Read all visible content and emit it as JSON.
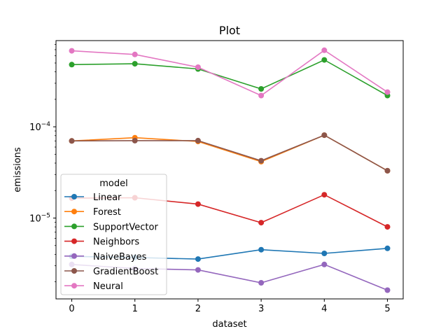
{
  "chart_data": {
    "type": "line",
    "title": "Plot",
    "xlabel": "dataset",
    "ylabel": "emissions",
    "yscale": "log",
    "x": [
      0,
      1,
      2,
      3,
      4,
      5
    ],
    "xlim": [
      -0.25,
      5.25
    ],
    "ylim": [
      1.3e-06,
      0.00088
    ],
    "x_ticks": [
      "0",
      "1",
      "2",
      "3",
      "4",
      "5"
    ],
    "y_major_ticks": [
      {
        "value": 1e-05,
        "base": "10",
        "exp": "−5"
      },
      {
        "value": 0.0001,
        "base": "10",
        "exp": "−4"
      }
    ],
    "grid": false,
    "legend": {
      "title": "model",
      "placement": "lower-left"
    },
    "series": [
      {
        "name": "Linear",
        "color": "#1f77b4",
        "values": [
          3.8e-06,
          3.7e-06,
          3.55e-06,
          4.5e-06,
          4.1e-06,
          4.65e-06
        ]
      },
      {
        "name": "Forest",
        "color": "#ff7f0e",
        "values": [
          7e-05,
          7.6e-05,
          6.9e-05,
          4.15e-05,
          8.1e-05,
          3.3e-05
        ]
      },
      {
        "name": "SupportVector",
        "color": "#2ca02c",
        "values": [
          0.00048,
          0.00049,
          0.00043,
          0.00026,
          0.00054,
          0.00022
        ]
      },
      {
        "name": "Neighbors",
        "color": "#d62728",
        "values": [
          1.65e-05,
          1.67e-05,
          1.42e-05,
          8.9e-06,
          1.8e-05,
          8e-06
        ]
      },
      {
        "name": "NaiveBayes",
        "color": "#9467bd",
        "values": [
          3.1e-06,
          2.8e-06,
          2.7e-06,
          1.95e-06,
          3.1e-06,
          1.62e-06
        ]
      },
      {
        "name": "GradientBoost",
        "color": "#8c564b",
        "values": [
          7e-05,
          7.05e-05,
          7.05e-05,
          4.25e-05,
          8.1e-05,
          3.3e-05
        ]
      },
      {
        "name": "Neural",
        "color": "#e377c2",
        "values": [
          0.00068,
          0.00062,
          0.00045,
          0.00022,
          0.00069,
          0.00024
        ]
      }
    ]
  }
}
